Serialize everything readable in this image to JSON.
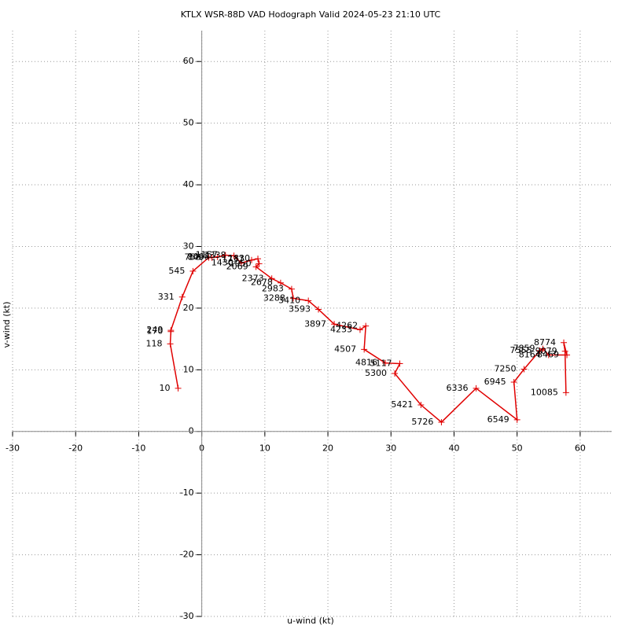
{
  "chart_data": {
    "type": "hodograph",
    "title": "KTLX WSR-88D VAD Hodograph Valid 2024-05-23 21:10 UTC",
    "xlabel": "u-wind (kt)",
    "ylabel": "v-wind (kt)",
    "xlim": [
      -30,
      65
    ],
    "ylim": [
      -30,
      65
    ],
    "xticks": [
      -30,
      -20,
      -10,
      0,
      10,
      20,
      30,
      40,
      50,
      60
    ],
    "yticks": [
      -30,
      -20,
      -10,
      0,
      10,
      20,
      30,
      40,
      50,
      60
    ],
    "grid": true,
    "series": [
      {
        "color": "#e00000",
        "x": [
          -3.75,
          -5,
          -4.9,
          -4.9,
          -3.1,
          -1.4,
          1.1,
          1.6,
          2.5,
          3.75,
          5.1,
          6.25,
          7.9,
          8.9,
          9.1,
          8.6,
          11.1,
          12.5,
          14.25,
          14.5,
          16.9,
          18.5,
          21,
          25.1,
          26,
          25.75,
          29.1,
          31.4,
          30.6,
          34.75,
          38,
          43.5,
          50,
          49.5,
          51.1,
          53.6,
          54.1,
          55,
          57.9,
          57.4,
          57.6,
          57.75
        ],
        "values": [
          7.0,
          14.2,
          16.2,
          16.4,
          21.8,
          26.0,
          28.2,
          28.2,
          28.3,
          28.6,
          28.5,
          27.3,
          27.8,
          28.0,
          27.2,
          26.7,
          24.8,
          24.1,
          23.1,
          21.6,
          21.2,
          19.8,
          17.4,
          16.5,
          17.1,
          13.3,
          11.1,
          11.0,
          9.4,
          4.3,
          1.5,
          7.0,
          1.9,
          8.0,
          10.1,
          13.1,
          13.4,
          12.4,
          12.4,
          14.4,
          13.0,
          6.3
        ],
        "heights": [
          10,
          118,
          170,
          249,
          331,
          545,
          758,
          849,
          1068,
          1157,
          1338,
          1430,
          1737,
          1830,
          1950,
          2069,
          2373,
          2678,
          2983,
          3288,
          3410,
          3593,
          3897,
          4233,
          4262,
          4507,
          4816,
          5117,
          5300,
          5421,
          5726,
          6336,
          6549,
          6945,
          7250,
          7555,
          7859,
          8164,
          8469,
          8774,
          9079,
          10085
        ]
      }
    ]
  }
}
